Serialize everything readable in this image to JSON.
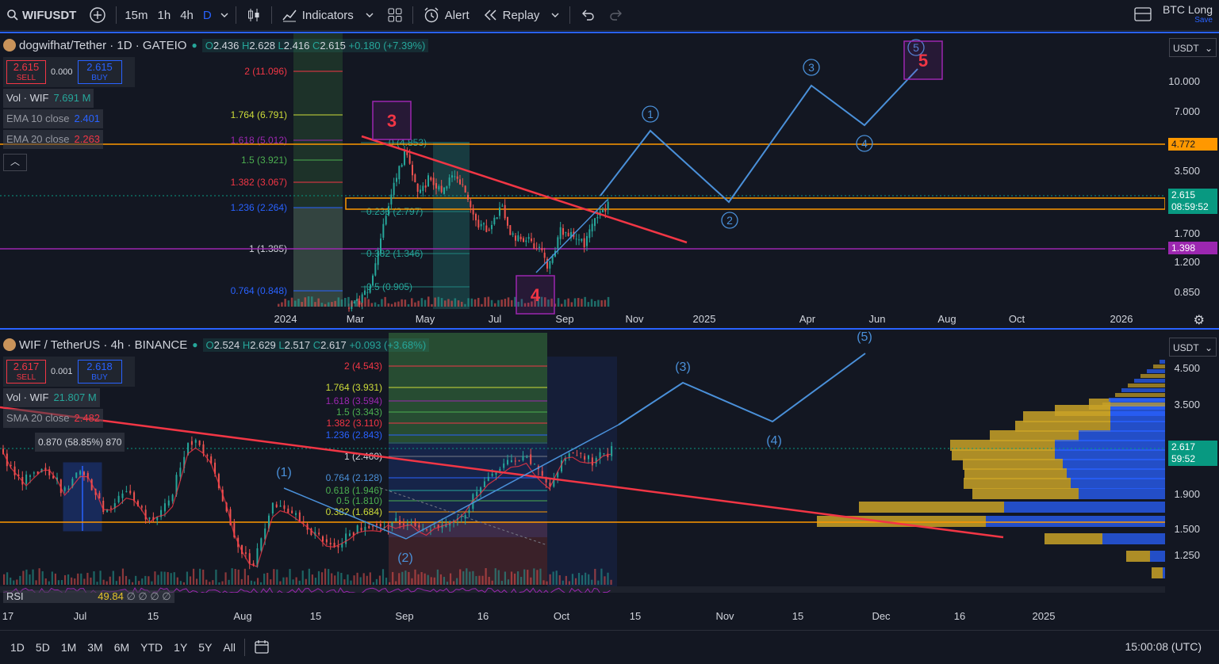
{
  "toolbar": {
    "symbol": "WIFUSDT",
    "intervals": [
      "15m",
      "1h",
      "4h",
      "D"
    ],
    "indicators_label": "Indicators",
    "alert_label": "Alert",
    "replay_label": "Replay",
    "layout_name": "BTC Long",
    "layout_save": "Save"
  },
  "pane1": {
    "title": "dogwifhat/Tether · 1D · GATEIO",
    "ohlc": {
      "o": "2.436",
      "h": "2.628",
      "l": "2.416",
      "c": "2.615",
      "change": "+0.180 (+7.39%)"
    },
    "sell_price": "2.615",
    "sell_label": "SELL",
    "spread": "0.000",
    "buy_price": "2.615",
    "buy_label": "BUY",
    "indicators": [
      {
        "name": "Vol · WIF",
        "value": "7.691 M",
        "color": "#26a69a"
      },
      {
        "name": "EMA 10 close",
        "value": "2.401",
        "color": "#2962ff"
      },
      {
        "name": "EMA 20 close",
        "value": "2.263",
        "color": "#f23645"
      }
    ],
    "currency": "USDT",
    "price_ticks": [
      "10.000",
      "7.000",
      "3.500",
      "1.700",
      "1.200",
      "0.850"
    ],
    "price_tags": [
      {
        "value": "4.772",
        "color": "#ff9800"
      },
      {
        "value": "2.615",
        "sub": "08:59:52",
        "color": "#089981"
      },
      {
        "value": "1.398",
        "color": "#9c27b0"
      }
    ],
    "time_ticks": [
      "2024",
      "Mar",
      "May",
      "Jul",
      "Sep",
      "Nov",
      "2025",
      "Apr",
      "Jun",
      "Aug",
      "Oct",
      "2026"
    ],
    "fib_labels": [
      "2 (11.096)",
      "1.764 (6.791)",
      "1.618 (5.012)",
      "1.5 (3.921)",
      "1.382 (3.067)",
      "1.236 (2.264)",
      "1 (1.385)",
      "0.764 (0.848)"
    ],
    "fib2_labels": [
      "0 (4.853)",
      "0.236 (2.797)",
      "0.382 (1.346)",
      "0.5 (0.905)"
    ],
    "wave_labels": [
      "1",
      "2",
      "3",
      "4",
      "5"
    ],
    "box_labels": [
      "3",
      "4",
      "5"
    ]
  },
  "pane2": {
    "title": "WIF / TetherUS · 4h · BINANCE",
    "ohlc": {
      "o": "2.524",
      "h": "2.629",
      "l": "2.517",
      "c": "2.617",
      "change": "+0.093 (+3.68%)"
    },
    "sell_price": "2.617",
    "sell_label": "SELL",
    "spread": "0.001",
    "buy_price": "2.618",
    "buy_label": "BUY",
    "indicators": [
      {
        "name": "Vol · WIF",
        "value": "21.807 M",
        "color": "#26a69a"
      },
      {
        "name": "SMA 20 close",
        "value": "2.482",
        "color": "#f23645"
      }
    ],
    "measure_label": "0.870 (58.85%) 870",
    "rsi_label": "RSI",
    "rsi_value": "49.84",
    "rsi_extra": "∅ ∅ ∅ ∅",
    "currency": "USDT",
    "price_ticks": [
      "4.500",
      "3.500",
      "1.900",
      "1.500",
      "1.250"
    ],
    "price_tag": {
      "value": "2.617",
      "sub": "59:52",
      "color": "#089981"
    },
    "time_ticks": [
      "17",
      "Jul",
      "15",
      "Aug",
      "15",
      "Sep",
      "16",
      "Oct",
      "15",
      "Nov",
      "15",
      "Dec",
      "16",
      "2025"
    ],
    "fib_labels": [
      "2 (4.543)",
      "1.764 (3.931)",
      "1.618 (3.594)",
      "1.5 (3.343)",
      "1.382 (3.110)",
      "1.236 (2.843)",
      "1 (2.460)",
      "0.764 (2.128)",
      "0.618 (1.946)",
      "0.5 (1.810)",
      "0.382 (1.684)"
    ],
    "wave_labels": [
      "(1)",
      "(2)",
      "(3)",
      "(4)",
      "(5)"
    ]
  },
  "bottombar": {
    "ranges": [
      "1D",
      "5D",
      "1M",
      "3M",
      "6M",
      "YTD",
      "1Y",
      "5Y",
      "All"
    ],
    "clock": "15:00:08 (UTC)"
  },
  "colors": {
    "background": "#131722",
    "accent": "#2962ff",
    "up": "#26a69a",
    "down": "#ef5350",
    "trendline": "#f23645",
    "wave": "#4a90d9",
    "level": "#ff9800",
    "purple": "#9c27b0"
  }
}
